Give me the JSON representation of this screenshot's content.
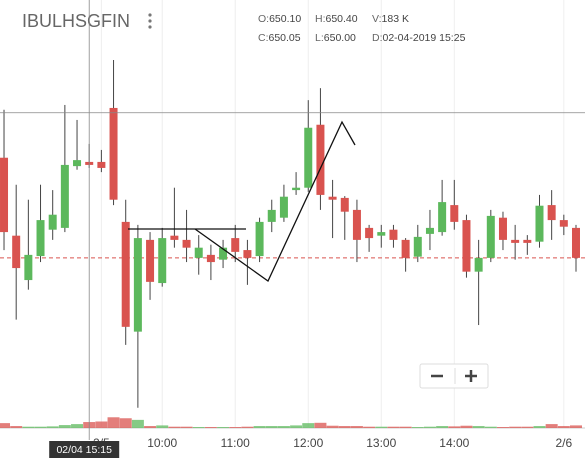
{
  "chart_data": {
    "type": "candlestick",
    "title": "IBULHSGFIN",
    "hover": [
      {
        "label": "O:",
        "value": "650.10"
      },
      {
        "label": "H:",
        "value": "650.40"
      },
      {
        "label": "V:",
        "value": "183 K"
      },
      {
        "label": "C:",
        "value": "650.05"
      },
      {
        "label": "L:",
        "value": "650.00"
      },
      {
        "label": "D:",
        "value": "02-04-2019 15:25"
      }
    ],
    "x": [
      0,
      1,
      2,
      3,
      4,
      5,
      6,
      7,
      8,
      9,
      10,
      11,
      12,
      13,
      14,
      15,
      16,
      17,
      18,
      19,
      20,
      21,
      22,
      23,
      24,
      25,
      26,
      27,
      28,
      29,
      30,
      31,
      32,
      33,
      34,
      35,
      36,
      37,
      38,
      39,
      40,
      41,
      42,
      43,
      44,
      45,
      46,
      47
    ],
    "open": [
      650.17,
      648.87,
      648.13,
      648.53,
      648.97,
      649.0,
      650.03,
      650.1,
      650.1,
      651.0,
      649.1,
      647.27,
      648.8,
      648.08,
      648.87,
      648.8,
      648.5,
      648.55,
      648.47,
      648.83,
      648.63,
      648.53,
      649.1,
      649.17,
      649.63,
      649.67,
      650.72,
      649.52,
      649.5,
      649.3,
      649.0,
      648.87,
      648.97,
      648.8,
      648.52,
      648.9,
      648.93,
      649.38,
      649.13,
      648.27,
      648.5,
      649.17,
      648.8,
      648.8,
      648.77,
      649.38,
      649.13,
      649.0
    ],
    "high": [
      650.97,
      649.72,
      649.47,
      649.72,
      649.63,
      651.05,
      650.8,
      650.4,
      650.3,
      651.8,
      649.47,
      649.05,
      648.93,
      649.0,
      649.67,
      649.3,
      648.88,
      648.72,
      648.8,
      649.05,
      648.8,
      649.17,
      649.47,
      649.72,
      649.93,
      651.13,
      651.33,
      649.8,
      649.53,
      649.47,
      649.05,
      649.05,
      649.05,
      648.83,
      649.05,
      649.3,
      649.8,
      649.8,
      649.22,
      648.8,
      649.3,
      649.27,
      649.05,
      648.88,
      649.55,
      649.63,
      649.22,
      649.05
    ],
    "low": [
      648.63,
      647.47,
      647.97,
      648.43,
      648.8,
      648.93,
      649.97,
      650.0,
      649.93,
      649.38,
      647.05,
      646.0,
      647.8,
      648.02,
      648.67,
      648.43,
      648.22,
      648.13,
      648.33,
      648.43,
      648.05,
      648.43,
      648.93,
      649.1,
      649.55,
      649.6,
      649.3,
      648.83,
      648.8,
      648.43,
      648.6,
      648.67,
      648.67,
      648.27,
      648.43,
      648.63,
      648.87,
      648.97,
      648.17,
      647.38,
      648.43,
      648.63,
      648.47,
      648.55,
      648.67,
      648.8,
      648.88,
      648.27
    ],
    "close": [
      648.93,
      648.33,
      648.55,
      649.13,
      649.22,
      650.05,
      650.13,
      650.05,
      650.0,
      649.47,
      647.35,
      648.83,
      648.1,
      648.83,
      648.8,
      648.67,
      648.67,
      648.43,
      648.67,
      648.6,
      648.5,
      649.1,
      649.3,
      649.52,
      649.67,
      650.67,
      649.55,
      649.47,
      649.27,
      648.8,
      648.83,
      648.93,
      648.8,
      648.5,
      648.85,
      649.0,
      649.43,
      649.1,
      648.27,
      648.5,
      649.2,
      648.8,
      648.75,
      648.75,
      649.37,
      649.13,
      649.02,
      648.5
    ],
    "volume": [
      150,
      60,
      40,
      40,
      50,
      90,
      120,
      183,
      200,
      330,
      300,
      250,
      60,
      80,
      40,
      40,
      30,
      30,
      30,
      30,
      40,
      60,
      60,
      60,
      80,
      150,
      160,
      70,
      60,
      60,
      40,
      40,
      40,
      40,
      30,
      40,
      60,
      50,
      70,
      60,
      40,
      30,
      40,
      40,
      60,
      120,
      60,
      80
    ],
    "up_color": "#5cb85c",
    "down_color": "#d9534f",
    "xlim": [
      -0.33,
      47.74
    ],
    "ylim": [
      645.88,
      652.8
    ],
    "volume_lim": [
      0,
      400
    ],
    "xticks": [
      {
        "value": 8,
        "label": "2/5"
      },
      {
        "value": 13,
        "label": "10:00"
      },
      {
        "value": 19,
        "label": "11:00"
      },
      {
        "value": 25,
        "label": "12:00"
      },
      {
        "value": 31,
        "label": "13:00"
      },
      {
        "value": 37,
        "label": "14:00"
      },
      {
        "value": 46,
        "label": "2/6"
      }
    ],
    "grid": true,
    "crosshair": {
      "x": 7,
      "y": 650.92,
      "label": "02/04 15:15"
    }
  }
}
